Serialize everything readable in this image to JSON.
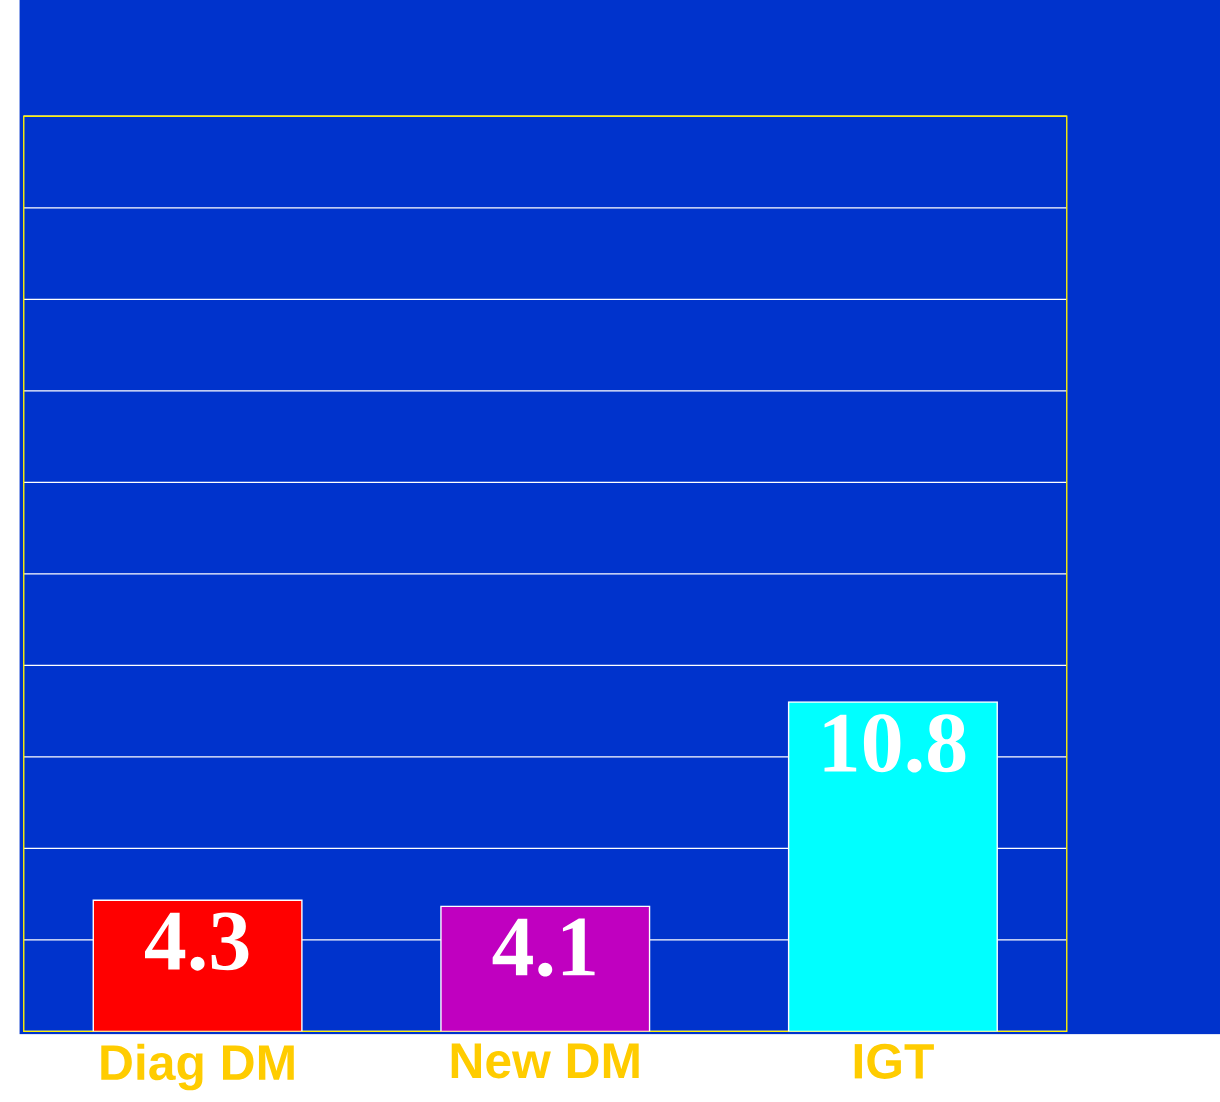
{
  "chart_data": {
    "type": "bar",
    "categories": [
      "Diag DM",
      "New DM",
      "IGT"
    ],
    "values": [
      4.3,
      4.1,
      10.8
    ],
    "colors": [
      "#ff0000",
      "#c000c0",
      "#00ffff"
    ],
    "data_labels": true,
    "ylim": [
      0,
      30
    ],
    "yticks": [
      {
        "value": 0,
        "label": null
      },
      {
        "value": 3,
        "label": null
      },
      {
        "value": 6,
        "label": null
      },
      {
        "value": 9,
        "label": null
      },
      {
        "value": 12,
        "label": null
      },
      {
        "value": 15,
        "label": null
      },
      {
        "value": 18,
        "label": null
      },
      {
        "value": 21,
        "label": null
      },
      {
        "value": 24,
        "label": null
      },
      {
        "value": 27,
        "label": null
      },
      {
        "value": 30,
        "label": null
      }
    ],
    "grid": "y"
  }
}
